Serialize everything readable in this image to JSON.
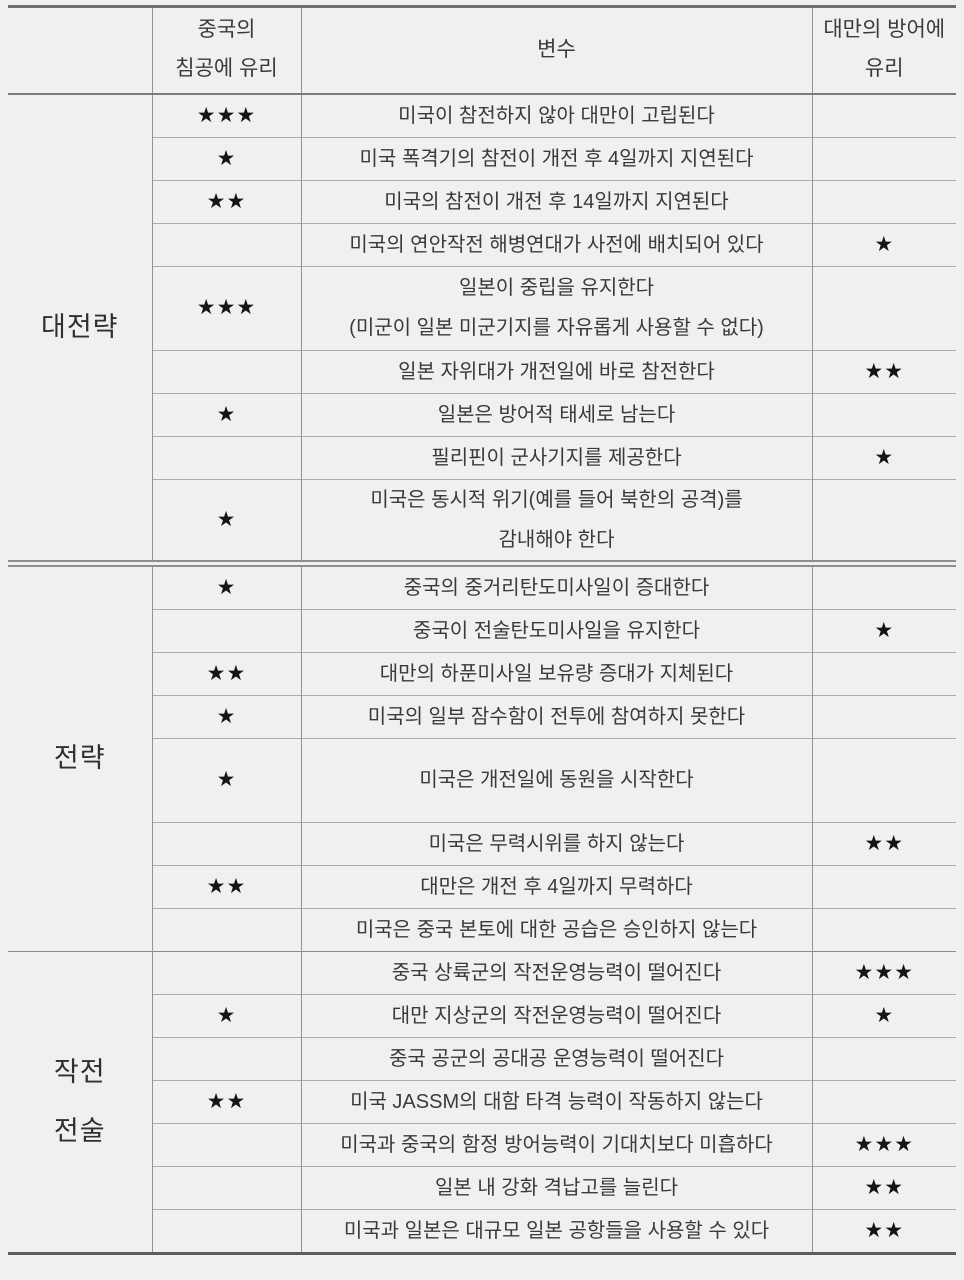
{
  "table": {
    "header": {
      "corner": "",
      "china_col": "중국의\n침공에 유리",
      "variable_col": "변수",
      "taiwan_col": "대만의\n방어에 유리"
    },
    "sections": [
      {
        "label": "대전략",
        "divider_before": "none",
        "rows": [
          {
            "china": "★★★",
            "variable": "미국이 참전하지 않아 대만이 고립된다",
            "taiwan": ""
          },
          {
            "china": "★",
            "variable": "미국 폭격기의 참전이 개전 후 4일까지 지연된다",
            "taiwan": ""
          },
          {
            "china": "★★",
            "variable": "미국의 참전이 개전 후 14일까지 지연된다",
            "taiwan": ""
          },
          {
            "china": "",
            "variable": "미국의 연안작전 해병연대가 사전에 배치되어 있다",
            "taiwan": "★"
          },
          {
            "china": "★★★",
            "variable": "일본이 중립을 유지한다\n(미군이 일본 미군기지를 자유롭게 사용할 수 없다)",
            "taiwan": "",
            "tall": true
          },
          {
            "china": "",
            "variable": "일본 자위대가 개전일에 바로 참전한다",
            "taiwan": "★★"
          },
          {
            "china": "★",
            "variable": "일본은 방어적 태세로 남는다",
            "taiwan": ""
          },
          {
            "china": "",
            "variable": "필리핀이 군사기지를 제공한다",
            "taiwan": "★"
          },
          {
            "china": "★",
            "variable": "미국은 동시적 위기(예를 들어 북한의 공격)를\n감내해야 한다",
            "taiwan": "",
            "tall": true
          }
        ]
      },
      {
        "label": "전략",
        "divider_before": "double",
        "rows": [
          {
            "china": "★",
            "variable": "중국의 중거리탄도미사일이 증대한다",
            "taiwan": ""
          },
          {
            "china": "",
            "variable": "중국이 전술탄도미사일을 유지한다",
            "taiwan": "★"
          },
          {
            "china": "★★",
            "variable": "대만의 하푼미사일 보유량 증대가 지체된다",
            "taiwan": ""
          },
          {
            "china": "★",
            "variable": "미국의 일부 잠수함이 전투에 참여하지 못한다",
            "taiwan": ""
          },
          {
            "china": "★",
            "variable": "미국은 개전일에 동원을 시작한다",
            "taiwan": "",
            "tall": true
          },
          {
            "china": "",
            "variable": "미국은 무력시위를 하지 않는다",
            "taiwan": "★★"
          },
          {
            "china": "★★",
            "variable": "대만은 개전 후 4일까지 무력하다",
            "taiwan": ""
          },
          {
            "china": "",
            "variable": "미국은 중국 본토에 대한 공습은 승인하지 않는다",
            "taiwan": ""
          }
        ]
      },
      {
        "label": "작전\n전술",
        "divider_before": "single",
        "rows": [
          {
            "china": "",
            "variable": "중국 상륙군의 작전운영능력이 떨어진다",
            "taiwan": "★★★"
          },
          {
            "china": "★",
            "variable": "대만 지상군의 작전운영능력이 떨어진다",
            "taiwan": "★"
          },
          {
            "china": "",
            "variable": "중국 공군의 공대공 운영능력이 떨어진다",
            "taiwan": ""
          },
          {
            "china": "★★",
            "variable": "미국 JASSM의 대함 타격 능력이 작동하지 않는다",
            "taiwan": ""
          },
          {
            "china": "",
            "variable": "미국과 중국의 함정 방어능력이 기대치보다 미흡하다",
            "taiwan": "★★★"
          },
          {
            "china": "",
            "variable": "일본 내 강화 격납고를 늘린다",
            "taiwan": "★★"
          },
          {
            "china": "",
            "variable": "미국과 일본은 대규모 일본 공항들을 사용할 수 있다",
            "taiwan": "★★"
          }
        ]
      }
    ]
  },
  "colors": {
    "background": "#f0f0f0",
    "text": "#3a3a3a",
    "star": "#151515",
    "grid_line": "#ababab",
    "border_dark": "#5f5f5f"
  }
}
